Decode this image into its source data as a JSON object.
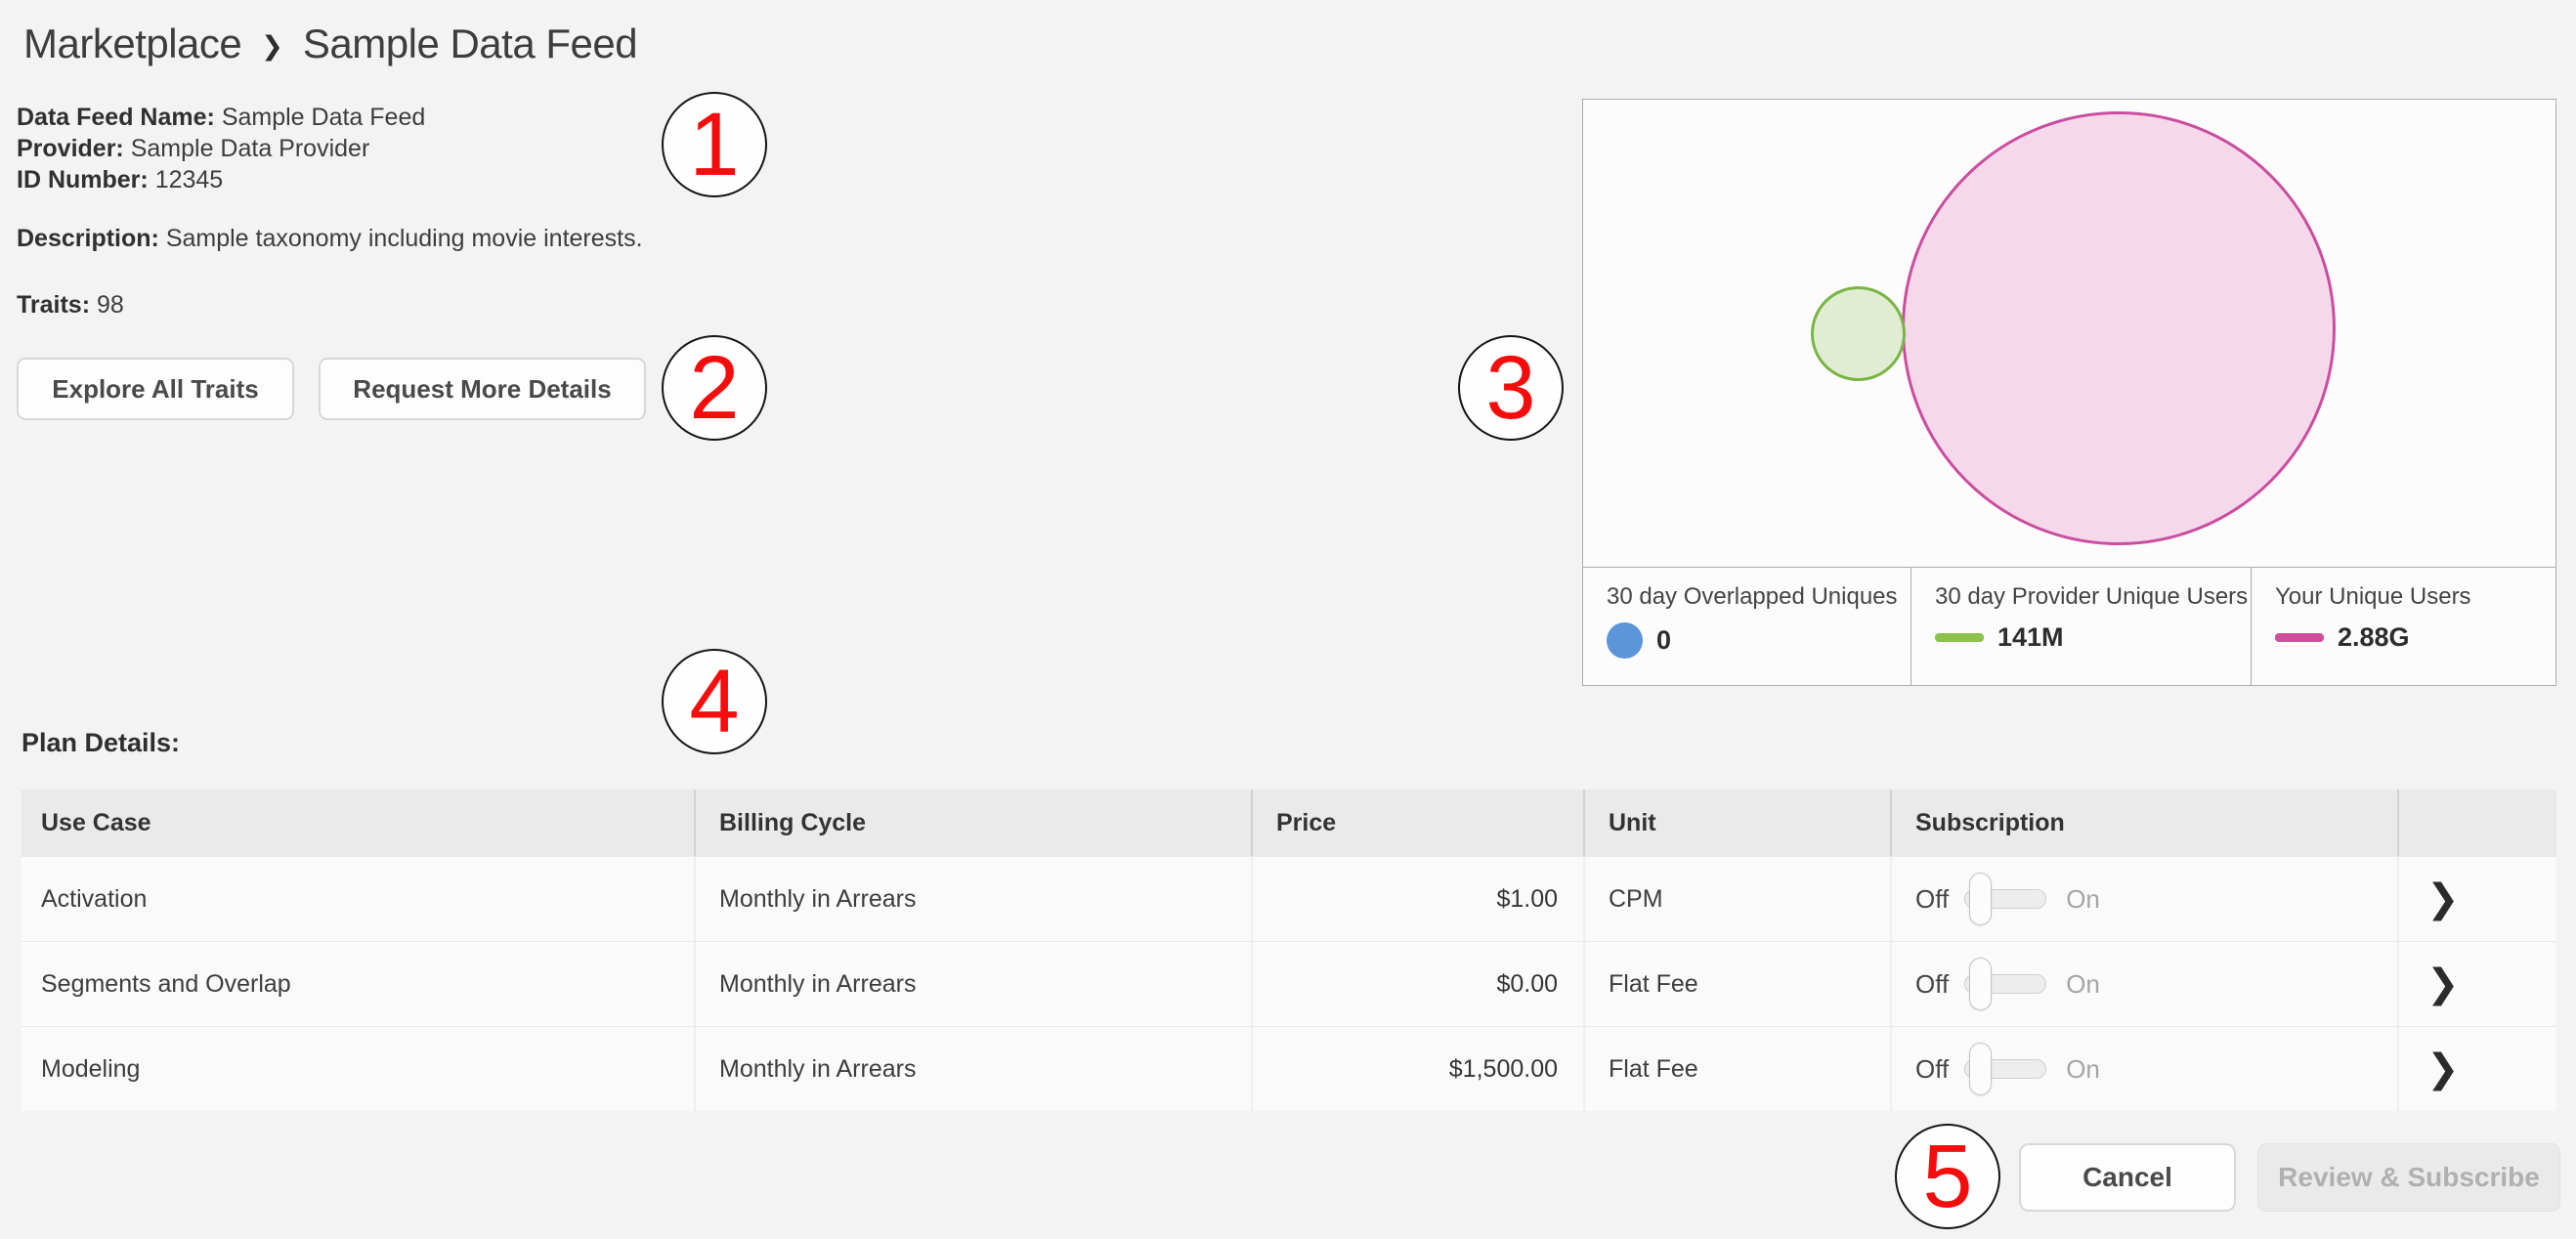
{
  "breadcrumb": {
    "parent": "Marketplace",
    "separator": "❯",
    "current": "Sample Data Feed"
  },
  "info": {
    "name_label": "Data Feed Name:",
    "name_value": "Sample Data Feed",
    "provider_label": "Provider:",
    "provider_value": "Sample Data Provider",
    "id_label": "ID Number:",
    "id_value": "12345",
    "description_label": "Description:",
    "description_value": "Sample taxonomy including movie interests.",
    "traits_label": "Traits:",
    "traits_value": "98"
  },
  "actions": {
    "explore_label": "Explore All Traits",
    "request_label": "Request More Details"
  },
  "chart_data": {
    "type": "venn",
    "title": "",
    "legend_position": "bottom",
    "series": [
      {
        "name": "30 day Overlapped Uniques",
        "value_label": "0",
        "value": 0,
        "color": "#5c95d9",
        "marker": "circle",
        "drawn": false
      },
      {
        "name": "30 day Provider Unique Users",
        "value_label": "141M",
        "value": 141000000,
        "color": "#8bc34a",
        "marker": "line",
        "drawn": true,
        "circle_fill": "#e0edd2",
        "circle_stroke": "#79b544"
      },
      {
        "name": "Your Unique Users",
        "value_label": "2.88G",
        "value": 2880000000,
        "color": "#cf4f9f",
        "marker": "line",
        "drawn": true,
        "circle_fill": "#f5d9eb",
        "circle_stroke": "#cb4da0"
      }
    ],
    "overlap": 0
  },
  "plan": {
    "title": "Plan Details:",
    "columns": [
      "Use Case",
      "Billing Cycle",
      "Price",
      "Unit",
      "Subscription",
      ""
    ],
    "toggle": {
      "off": "Off",
      "on": "On"
    },
    "rows": [
      {
        "use_case": "Activation",
        "billing_cycle": "Monthly in Arrears",
        "price": "$1.00",
        "unit": "CPM",
        "subscription_state": "off"
      },
      {
        "use_case": "Segments and Overlap",
        "billing_cycle": "Monthly in Arrears",
        "price": "$0.00",
        "unit": "Flat Fee",
        "subscription_state": "off"
      },
      {
        "use_case": "Modeling",
        "billing_cycle": "Monthly in Arrears",
        "price": "$1,500.00",
        "unit": "Flat Fee",
        "subscription_state": "off"
      }
    ]
  },
  "footer": {
    "cancel_label": "Cancel",
    "review_label": "Review & Subscribe"
  },
  "icons": {
    "chevron_right": "❯"
  },
  "annotations": [
    {
      "number": "1"
    },
    {
      "number": "2"
    },
    {
      "number": "3"
    },
    {
      "number": "4"
    },
    {
      "number": "5"
    }
  ],
  "colors": {
    "page_background": "#f3f3f3",
    "annotation_red": "#f50d0d",
    "venn_pink_fill": "#f5d9eb",
    "venn_pink_stroke": "#cb4da0",
    "venn_green_fill": "#e0edd2",
    "venn_green_stroke": "#79b544",
    "legend_blue": "#5c95d9",
    "legend_green": "#8bc34a",
    "legend_pink": "#cf4f9f"
  }
}
